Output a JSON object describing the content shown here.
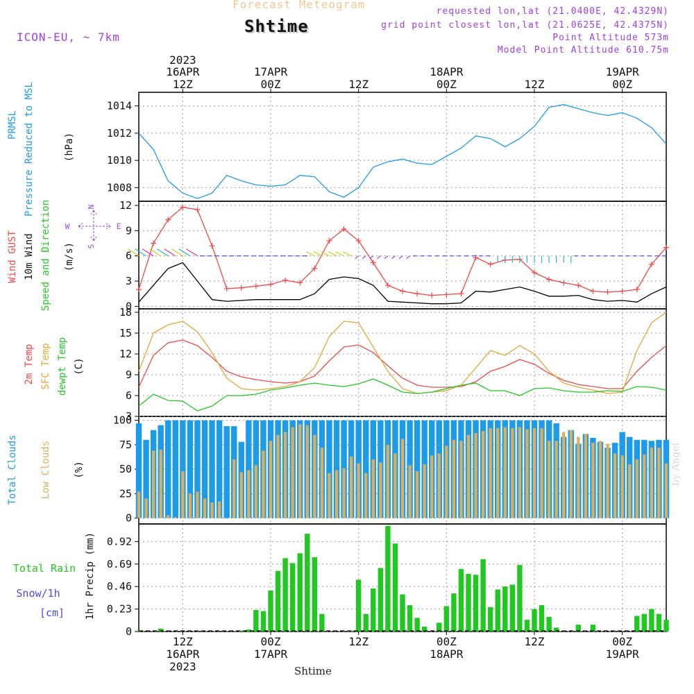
{
  "header": {
    "suptitle": "Forecast Meteogram",
    "title": "Shtime",
    "model": "ICON-EU, ~ 7km",
    "requested": "requested lon,lat (21.0400E, 42.4329N)",
    "grid_point": "grid point closest lon,lat (21.0625E, 42.4375N)",
    "point_altitude": "Point Altitude 573m",
    "model_altitude": "Model Point Altitude 610.75m"
  },
  "footer": "Shtime",
  "watermark": "by Angel",
  "time_axis": {
    "top_year": "2023",
    "bottom_year": "2023",
    "ticks": [
      {
        "h": 12,
        "hour": "12Z",
        "day": "16APR"
      },
      {
        "h": 24,
        "hour": "00Z",
        "day": "17APR"
      },
      {
        "h": 36,
        "hour": "12Z",
        "day": ""
      },
      {
        "h": 48,
        "hour": "00Z",
        "day": "18APR"
      },
      {
        "h": 60,
        "hour": "12Z",
        "day": ""
      },
      {
        "h": 72,
        "hour": "00Z",
        "day": "19APR"
      }
    ],
    "start": "16APR 06Z",
    "end": "19APR 06Z"
  },
  "colors": {
    "pressure": "#1e9be8",
    "gust": "#f04848",
    "wind10m": "#000000",
    "temp2m": "#f04848",
    "sfc_temp": "#e0a838",
    "dewpoint": "#22c822",
    "total_clouds": "#1e9be8",
    "low_clouds": "#d8b060",
    "rain": "#22c822",
    "snow": "#4a4ae8",
    "compass": "#a040e0"
  },
  "panels": {
    "pressure": {
      "label1": "PRMSL",
      "label2": "Pressure Reduced to MSL",
      "unit": "(hPa)"
    },
    "wind": {
      "label1": "Wind GUST",
      "label2": "10m Wind",
      "label3": "Speed and Direction",
      "unit": "(m/s)",
      "compass": {
        "n": "N",
        "s": "S",
        "w": "W",
        "e": "E"
      }
    },
    "temp": {
      "label1": "2m Temp",
      "label2": "SFC Temp",
      "label3": "dewpt Temp",
      "unit": "(C)"
    },
    "clouds": {
      "label1": "Total Clouds",
      "label2": "Low Clouds",
      "unit": "(%)"
    },
    "precip": {
      "label_rain": "Total   Rain",
      "label_snow": "Snow/1h",
      "label_snow_unit": "[cm]",
      "ylabel": "1hr Precip (mm)"
    }
  },
  "chart_data": [
    {
      "type": "line",
      "name": "pressure",
      "x_unit": "hours since 16APR 00Z",
      "x": [
        6,
        8,
        10,
        12,
        14,
        16,
        18,
        20,
        22,
        24,
        26,
        28,
        30,
        32,
        34,
        36,
        38,
        40,
        42,
        44,
        46,
        48,
        50,
        52,
        54,
        56,
        58,
        60,
        62,
        64,
        66,
        68,
        70,
        72,
        74,
        76,
        78
      ],
      "ylim": [
        1007,
        1015
      ],
      "yticks": [
        1008,
        1010,
        1012,
        1014
      ],
      "series": [
        {
          "name": "PRMSL",
          "values": [
            1012.0,
            1010.8,
            1008.5,
            1007.6,
            1007.2,
            1007.6,
            1008.9,
            1008.5,
            1008.2,
            1008.1,
            1008.2,
            1008.9,
            1008.8,
            1007.7,
            1007.3,
            1008.0,
            1009.5,
            1009.9,
            1010.1,
            1009.8,
            1009.7,
            1010.3,
            1010.9,
            1011.8,
            1011.6,
            1011.0,
            1011.6,
            1012.5,
            1013.9,
            1014.1,
            1013.8,
            1013.5,
            1013.3,
            1013.5,
            1013.1,
            1012.4,
            1011.2
          ]
        }
      ]
    },
    {
      "type": "line",
      "name": "wind",
      "x_unit": "hours since 16APR 00Z",
      "x": [
        6,
        8,
        10,
        12,
        14,
        16,
        18,
        20,
        22,
        24,
        26,
        28,
        30,
        32,
        34,
        36,
        38,
        40,
        42,
        44,
        46,
        48,
        50,
        52,
        54,
        56,
        58,
        60,
        62,
        64,
        66,
        68,
        70,
        72,
        74,
        76,
        78
      ],
      "ylim": [
        -0.3,
        12.5
      ],
      "yticks": [
        0,
        3,
        6,
        9,
        12
      ],
      "series": [
        {
          "name": "Wind GUST",
          "values": [
            2.0,
            7.5,
            10.3,
            11.8,
            11.5,
            7.2,
            2.1,
            2.2,
            2.4,
            2.6,
            3.1,
            2.8,
            4.5,
            7.8,
            9.2,
            7.8,
            5.2,
            2.5,
            1.8,
            1.5,
            1.3,
            1.4,
            1.5,
            5.8,
            5.0,
            5.5,
            5.6,
            4.0,
            3.2,
            2.8,
            2.5,
            1.8,
            1.7,
            1.8,
            2.0,
            5.0,
            7.0
          ]
        },
        {
          "name": "10m Wind",
          "values": [
            0.5,
            2.5,
            4.5,
            5.2,
            3.0,
            0.8,
            0.6,
            0.7,
            0.8,
            0.8,
            0.8,
            0.8,
            1.5,
            3.2,
            3.5,
            3.3,
            2.5,
            0.6,
            0.5,
            0.4,
            0.3,
            0.3,
            0.4,
            1.8,
            1.7,
            2.0,
            2.3,
            1.8,
            1.2,
            1.2,
            1.3,
            0.8,
            0.6,
            0.7,
            0.5,
            1.5,
            2.3
          ]
        }
      ],
      "direction_arrows_y": 6
    },
    {
      "type": "line",
      "name": "temperature",
      "x_unit": "hours since 16APR 00Z",
      "x": [
        6,
        8,
        10,
        12,
        14,
        16,
        18,
        20,
        22,
        24,
        26,
        28,
        30,
        32,
        34,
        36,
        38,
        40,
        42,
        44,
        46,
        48,
        50,
        52,
        54,
        56,
        58,
        60,
        62,
        64,
        66,
        68,
        70,
        72,
        74,
        76,
        78
      ],
      "ylim": [
        3,
        18.5
      ],
      "yticks": [
        3,
        6,
        9,
        12,
        15,
        18
      ],
      "series": [
        {
          "name": "2m Temp",
          "values": [
            7.2,
            11.8,
            13.6,
            14.0,
            13.2,
            11.5,
            9.5,
            8.7,
            8.3,
            8.0,
            7.8,
            8.0,
            8.8,
            11.0,
            13.0,
            13.3,
            12.2,
            10.3,
            8.5,
            7.5,
            7.2,
            7.2,
            7.3,
            8.0,
            9.5,
            10.2,
            11.2,
            10.5,
            9.2,
            8.2,
            7.6,
            7.3,
            7.0,
            7.0,
            9.5,
            11.5,
            13.2
          ]
        },
        {
          "name": "SFC Temp",
          "values": [
            9.5,
            15.0,
            16.2,
            16.7,
            15.2,
            12.2,
            8.5,
            7.0,
            6.8,
            7.0,
            7.3,
            8.0,
            10.0,
            14.5,
            16.7,
            16.5,
            13.0,
            9.5,
            7.0,
            6.3,
            6.5,
            6.7,
            7.5,
            10.0,
            12.5,
            11.8,
            13.2,
            12.0,
            9.5,
            7.8,
            7.2,
            6.8,
            6.3,
            6.5,
            12.5,
            16.5,
            18.0
          ]
        },
        {
          "name": "dewpt Temp",
          "values": [
            4.5,
            6.2,
            5.3,
            5.2,
            3.8,
            4.5,
            6.0,
            6.0,
            6.2,
            6.8,
            7.1,
            7.5,
            7.8,
            7.5,
            7.3,
            7.7,
            8.4,
            7.5,
            6.5,
            6.3,
            6.5,
            7.0,
            7.5,
            7.8,
            6.7,
            6.7,
            6.0,
            7.0,
            7.1,
            6.7,
            6.5,
            6.5,
            6.7,
            6.6,
            7.3,
            7.2,
            6.8
          ]
        }
      ]
    },
    {
      "type": "bar",
      "name": "clouds",
      "x_unit": "hours since 16APR 00Z",
      "x": [
        6,
        7,
        8,
        9,
        10,
        11,
        12,
        13,
        14,
        15,
        16,
        17,
        18,
        19,
        20,
        21,
        22,
        23,
        24,
        25,
        26,
        27,
        28,
        29,
        30,
        31,
        32,
        33,
        34,
        35,
        36,
        37,
        38,
        39,
        40,
        41,
        42,
        43,
        44,
        45,
        46,
        47,
        48,
        49,
        50,
        51,
        52,
        53,
        54,
        55,
        56,
        57,
        58,
        59,
        60,
        61,
        62,
        63,
        64,
        65,
        66,
        67,
        68,
        69,
        70,
        71,
        72,
        73,
        74,
        75,
        76,
        77,
        78
      ],
      "ylim": [
        0,
        100
      ],
      "yticks": [
        0,
        25,
        50,
        75,
        100
      ],
      "series": [
        {
          "name": "Total Clouds",
          "values": [
            97,
            80,
            90,
            95,
            100,
            100,
            100,
            100,
            100,
            100,
            100,
            100,
            94,
            94,
            78,
            100,
            100,
            100,
            100,
            100,
            100,
            100,
            100,
            100,
            100,
            100,
            100,
            100,
            100,
            100,
            100,
            100,
            100,
            100,
            100,
            100,
            100,
            100,
            100,
            100,
            100,
            100,
            100,
            100,
            100,
            100,
            100,
            100,
            100,
            100,
            100,
            100,
            100,
            100,
            100,
            100,
            100,
            97,
            83,
            90,
            76,
            86,
            82,
            78,
            72,
            77,
            88,
            83,
            80,
            80,
            79,
            80,
            80
          ]
        },
        {
          "name": "Low Clouds",
          "values": [
            27,
            20,
            69,
            70,
            3,
            1,
            48,
            25,
            27,
            20,
            16,
            17,
            0,
            60,
            47,
            49,
            54,
            69,
            79,
            85,
            88,
            93,
            96,
            95,
            85,
            72,
            46,
            49,
            51,
            63,
            56,
            46,
            60,
            57,
            75,
            66,
            81,
            54,
            48,
            55,
            64,
            66,
            74,
            80,
            79,
            85,
            87,
            89,
            92,
            92,
            93,
            92,
            93,
            91,
            92,
            92,
            79,
            79,
            88,
            90,
            83,
            86,
            77,
            79,
            76,
            66,
            64,
            55,
            60,
            65,
            72,
            72,
            56
          ]
        }
      ]
    },
    {
      "type": "bar",
      "name": "precip",
      "x_unit": "hours since 16APR 00Z",
      "x": [
        6,
        7,
        8,
        9,
        10,
        11,
        12,
        13,
        14,
        15,
        16,
        17,
        18,
        19,
        20,
        21,
        22,
        23,
        24,
        25,
        26,
        27,
        28,
        29,
        30,
        31,
        32,
        33,
        34,
        35,
        36,
        37,
        38,
        39,
        40,
        41,
        42,
        43,
        44,
        45,
        46,
        47,
        48,
        49,
        50,
        51,
        52,
        53,
        54,
        55,
        56,
        57,
        58,
        59,
        60,
        61,
        62,
        63,
        64,
        65,
        66,
        67,
        68,
        69,
        70,
        71,
        72,
        73,
        74,
        75,
        76,
        77,
        78
      ],
      "ylim": [
        0,
        1.1
      ],
      "yticks": [
        0,
        0.23,
        0.46,
        0.69,
        0.92
      ],
      "ytick_labels": [
        "0",
        "0.23",
        "0.46",
        "0.69",
        "0.92"
      ],
      "series": [
        {
          "name": "Total Rain",
          "values": [
            0.01,
            0,
            0,
            0.03,
            0,
            0,
            0,
            0,
            0,
            0,
            0,
            0,
            0,
            0,
            0.01,
            0.02,
            0.22,
            0.21,
            0.42,
            0.62,
            0.75,
            0.7,
            0.8,
            1.0,
            0.76,
            0.18,
            0,
            0,
            0,
            0.01,
            0.53,
            0.18,
            0.44,
            0.65,
            1.08,
            0.9,
            0.38,
            0.27,
            0.14,
            0.05,
            0,
            0.09,
            0.26,
            0.39,
            0.64,
            0.59,
            0.58,
            0.74,
            0.25,
            0.43,
            0.46,
            0.48,
            0.68,
            0.12,
            0.23,
            0.27,
            0.15,
            0.04,
            0,
            0,
            0.07,
            0,
            0.07,
            0,
            0,
            0,
            0,
            0,
            0.16,
            0.18,
            0.23,
            0.18,
            0.12
          ]
        },
        {
          "name": "Snow/1h",
          "values": [
            0,
            0,
            0,
            0,
            0,
            0,
            0,
            0,
            0,
            0,
            0,
            0,
            0,
            0,
            0,
            0,
            0,
            0,
            0,
            0,
            0,
            0,
            0,
            0,
            0,
            0,
            0,
            0,
            0,
            0,
            0,
            0,
            0,
            0,
            0,
            0,
            0,
            0,
            0,
            0,
            0,
            0,
            0,
            0,
            0,
            0,
            0,
            0,
            0,
            0,
            0,
            0,
            0,
            0,
            0,
            0,
            0,
            0,
            0,
            0,
            0,
            0,
            0,
            0,
            0,
            0,
            0,
            0,
            0,
            0,
            0,
            0,
            0
          ]
        }
      ]
    }
  ]
}
